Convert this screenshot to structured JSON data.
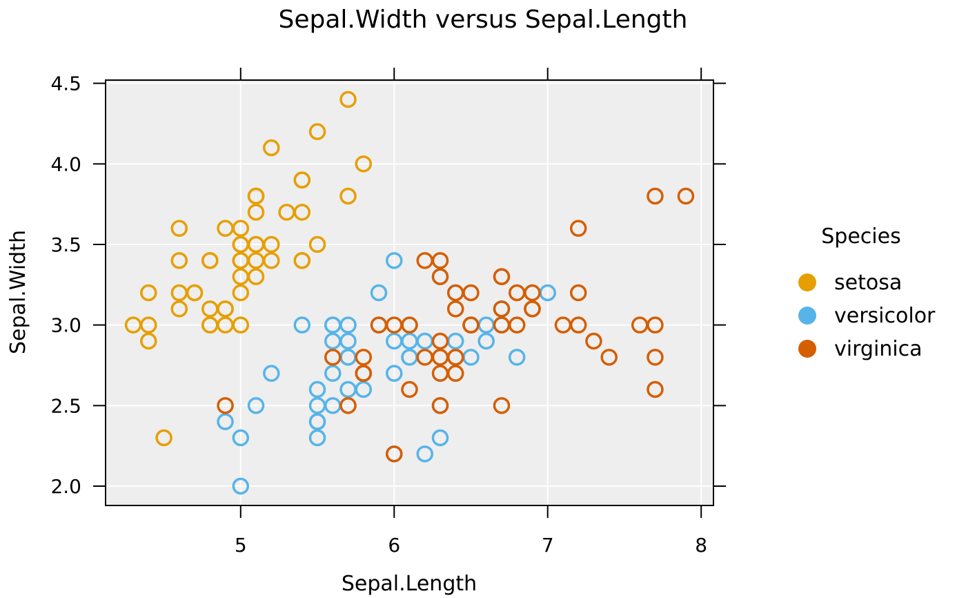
{
  "chart_data": {
    "type": "scatter",
    "title": "Sepal.Width versus Sepal.Length",
    "xlabel": "Sepal.Length",
    "ylabel": "Sepal.Width",
    "xlim": [
      4.12,
      8.08
    ],
    "ylim": [
      1.88,
      4.52
    ],
    "x_ticks": [
      5,
      6,
      7,
      8
    ],
    "x_tick_labels": [
      "5",
      "6",
      "7",
      "8"
    ],
    "y_ticks": [
      2.0,
      2.5,
      3.0,
      3.5,
      4.0,
      4.5
    ],
    "y_tick_labels": [
      "2.0",
      "2.5",
      "3.0",
      "3.5",
      "4.0",
      "4.5"
    ],
    "grid": true,
    "plot_background": "#eeeeee",
    "grid_color": "#ffffff",
    "legend": {
      "title": "Species",
      "position": "right",
      "entries": [
        "setosa",
        "versicolor",
        "virginica"
      ]
    },
    "series": [
      {
        "name": "setosa",
        "color": "#E69F00",
        "x": [
          5.1,
          4.9,
          4.7,
          4.6,
          5.0,
          5.4,
          4.6,
          5.0,
          4.4,
          4.9,
          5.4,
          4.8,
          4.8,
          4.3,
          5.8,
          5.7,
          5.4,
          5.1,
          5.7,
          5.1,
          5.4,
          5.1,
          4.6,
          5.1,
          4.8,
          5.0,
          5.0,
          5.2,
          5.2,
          4.7,
          4.8,
          5.4,
          5.2,
          5.5,
          4.9,
          5.0,
          5.5,
          4.9,
          4.4,
          5.1,
          5.0,
          4.5,
          4.4,
          5.0,
          5.1,
          4.8,
          5.1,
          4.6,
          5.3,
          5.0
        ],
        "y": [
          3.5,
          3.0,
          3.2,
          3.1,
          3.6,
          3.9,
          3.4,
          3.4,
          2.9,
          3.1,
          3.7,
          3.4,
          3.0,
          3.0,
          4.0,
          4.4,
          3.9,
          3.5,
          3.8,
          3.8,
          3.4,
          3.7,
          3.6,
          3.3,
          3.4,
          3.0,
          3.4,
          3.5,
          3.4,
          3.2,
          3.1,
          3.4,
          4.1,
          4.2,
          3.1,
          3.2,
          3.5,
          3.6,
          3.0,
          3.4,
          3.5,
          2.3,
          3.2,
          3.5,
          3.8,
          3.0,
          3.8,
          3.2,
          3.7,
          3.3
        ]
      },
      {
        "name": "versicolor",
        "color": "#56B4E9",
        "x": [
          7.0,
          6.4,
          6.9,
          5.5,
          6.5,
          5.7,
          6.3,
          4.9,
          6.6,
          5.2,
          5.0,
          5.9,
          6.0,
          6.1,
          5.6,
          6.7,
          5.6,
          5.8,
          6.2,
          5.6,
          5.9,
          6.1,
          6.3,
          6.1,
          6.4,
          6.6,
          6.8,
          6.7,
          6.0,
          5.7,
          5.5,
          5.5,
          5.8,
          6.0,
          5.4,
          6.0,
          6.7,
          6.3,
          5.6,
          5.5,
          5.5,
          6.1,
          5.8,
          5.0,
          5.6,
          5.7,
          5.7,
          6.2,
          5.1,
          5.7
        ],
        "y": [
          3.2,
          3.2,
          3.1,
          2.3,
          2.8,
          2.8,
          3.3,
          2.4,
          2.9,
          2.7,
          2.0,
          3.0,
          2.2,
          2.9,
          2.9,
          3.1,
          3.0,
          2.7,
          2.2,
          2.5,
          3.2,
          2.8,
          2.5,
          2.8,
          2.9,
          3.0,
          2.8,
          3.0,
          2.9,
          2.6,
          2.4,
          2.4,
          2.7,
          2.7,
          3.0,
          3.4,
          3.1,
          2.3,
          3.0,
          2.5,
          2.6,
          3.0,
          2.6,
          2.3,
          2.7,
          3.0,
          2.9,
          2.9,
          2.5,
          2.8
        ]
      },
      {
        "name": "virginica",
        "color": "#D55E00",
        "x": [
          6.3,
          5.8,
          7.1,
          6.3,
          6.5,
          7.6,
          4.9,
          7.3,
          6.7,
          7.2,
          6.5,
          6.4,
          6.8,
          5.7,
          5.8,
          6.4,
          6.5,
          7.7,
          7.7,
          6.0,
          6.9,
          5.6,
          7.7,
          6.3,
          6.7,
          7.2,
          6.2,
          6.1,
          6.4,
          7.2,
          7.4,
          7.9,
          6.4,
          6.3,
          6.1,
          7.7,
          6.3,
          6.4,
          6.0,
          6.9,
          6.7,
          6.9,
          5.8,
          6.8,
          6.7,
          6.7,
          6.3,
          6.5,
          6.2,
          5.9
        ],
        "y": [
          3.3,
          2.7,
          3.0,
          2.9,
          3.0,
          3.0,
          2.5,
          2.9,
          2.5,
          3.6,
          3.2,
          2.7,
          3.0,
          2.5,
          2.8,
          3.2,
          3.0,
          3.8,
          2.6,
          2.2,
          3.2,
          2.8,
          2.8,
          2.7,
          3.3,
          3.2,
          2.8,
          3.0,
          2.8,
          3.0,
          2.8,
          3.8,
          2.8,
          2.8,
          2.6,
          3.0,
          3.4,
          3.1,
          3.0,
          3.1,
          3.1,
          3.1,
          2.7,
          3.2,
          3.3,
          3.0,
          2.5,
          3.0,
          3.4,
          3.0
        ]
      }
    ]
  }
}
